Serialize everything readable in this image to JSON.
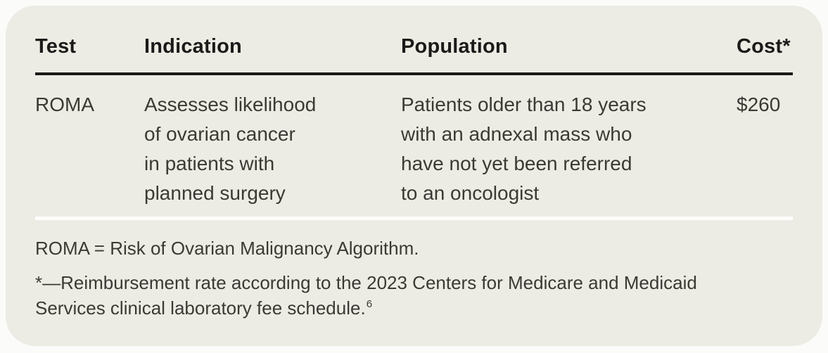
{
  "table": {
    "columns": [
      "Test",
      "Indication",
      "Population",
      "Cost*"
    ],
    "rows": [
      {
        "test": "ROMA",
        "indication_lines": [
          "Assesses likelihood",
          "of ovarian cancer",
          "in patients with",
          "planned surgery"
        ],
        "population_lines": [
          "Patients older than 18 years",
          "with an adnexal mass who",
          "have not yet been referred",
          "to an oncologist"
        ],
        "cost": "$260"
      }
    ]
  },
  "footnotes": {
    "abbreviation": "ROMA = Risk of Ovarian Malignancy Algorithm.",
    "cost_note_lines": [
      "*—Reimbursement rate according to the 2023 Centers for Medicare and Medicaid",
      "Services clinical laboratory fee schedule."
    ],
    "cost_note_reference": "6"
  },
  "colors": {
    "card_background": "#EDECE4",
    "page_background": "#FBFBF9",
    "header_text": "#1C1A19",
    "body_text": "#3B3934",
    "header_rule": "#1C1A19",
    "separator_rule": "#FFFFFF"
  }
}
